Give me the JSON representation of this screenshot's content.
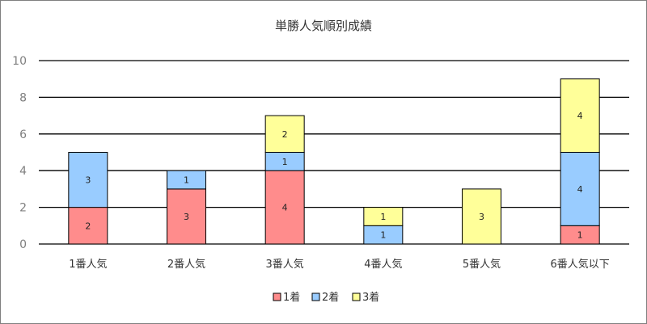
{
  "chart_data": {
    "type": "bar",
    "stacked": true,
    "title": "単勝人気順別成績",
    "categories": [
      "1番人気",
      "2番人気",
      "3番人気",
      "4番人気",
      "5番人気",
      "6番人気以下"
    ],
    "series": [
      {
        "name": "1着",
        "color": "#ff8c8c",
        "values": [
          2,
          3,
          4,
          0,
          0,
          1
        ]
      },
      {
        "name": "2着",
        "color": "#99ccff",
        "values": [
          3,
          1,
          1,
          1,
          0,
          4
        ]
      },
      {
        "name": "3着",
        "color": "#ffff99",
        "values": [
          0,
          0,
          2,
          1,
          3,
          4
        ]
      }
    ],
    "ylim": [
      0,
      10
    ],
    "yticks": [
      "0",
      "2",
      "4",
      "6",
      "8",
      "10"
    ],
    "grid": true,
    "legend_position": "bottom"
  }
}
